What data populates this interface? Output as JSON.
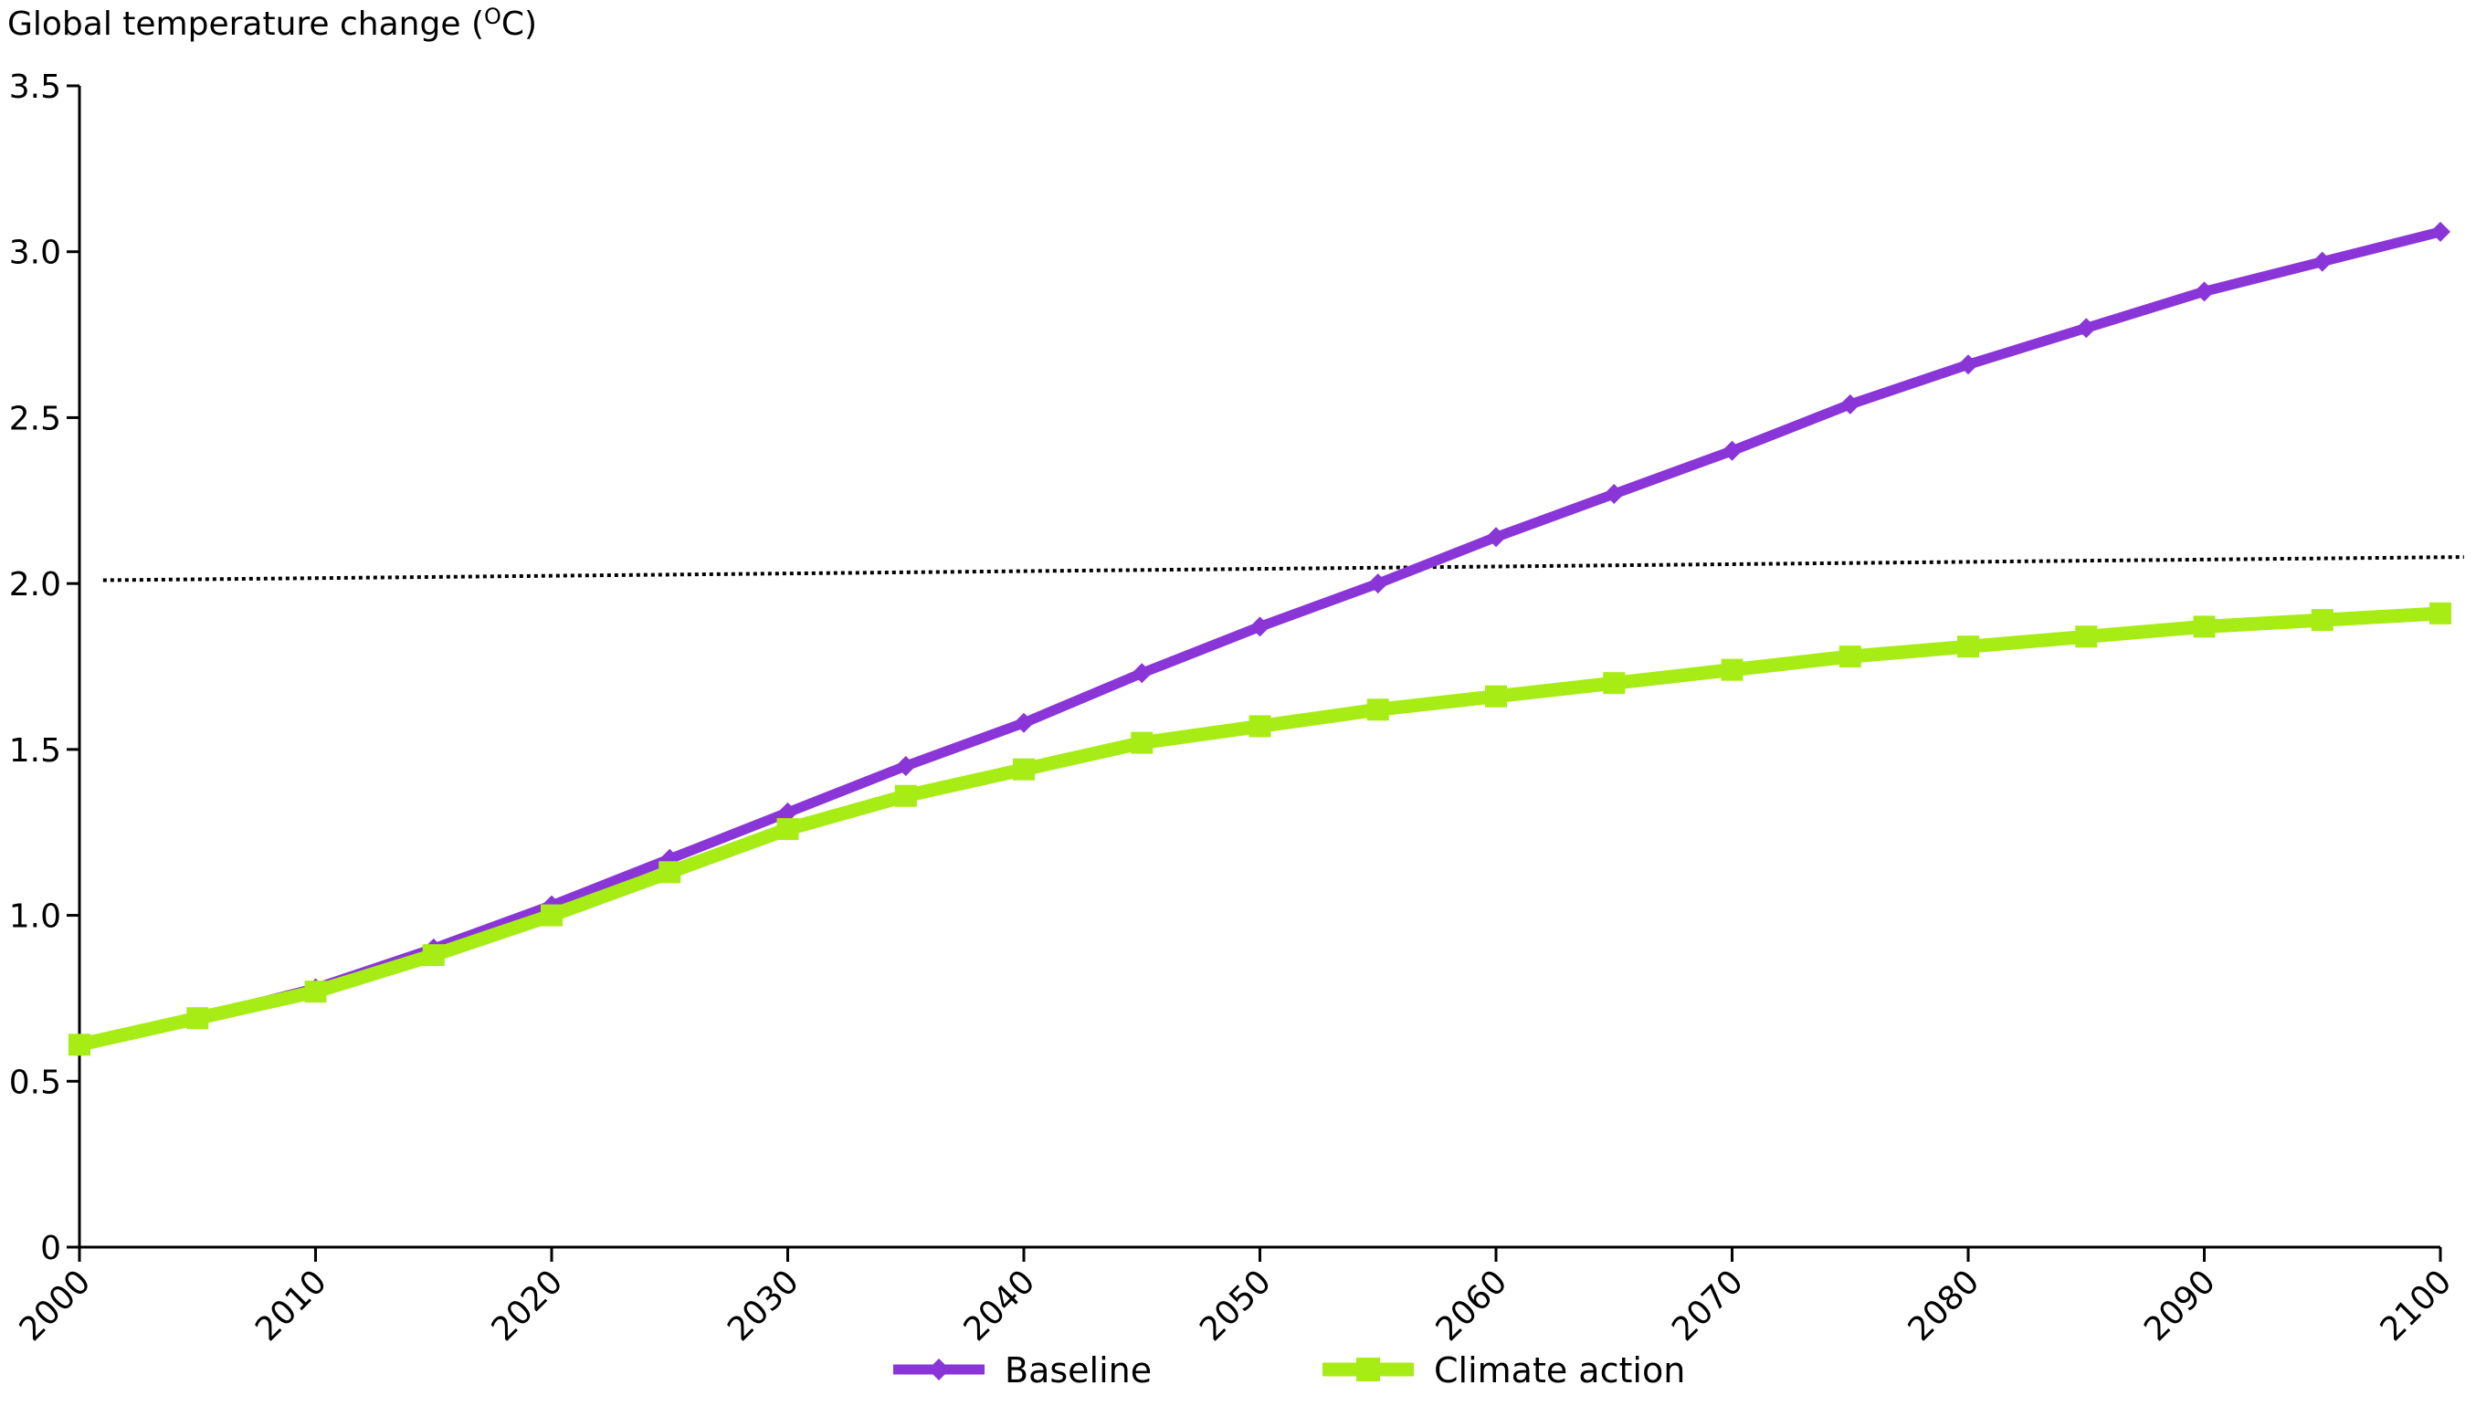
{
  "chart_data": {
    "type": "line",
    "title": "",
    "ylabel": "Global temperature change (",
    "ylabel_superscript": "O",
    "ylabel_suffix": "C)",
    "xlabel": "",
    "ylim": [
      0,
      3.5
    ],
    "xlim": [
      2000,
      2100
    ],
    "y_ticks": [
      "0",
      "0.5",
      "1.0",
      "1.5",
      "2.0",
      "2.5",
      "3.0",
      "3.5"
    ],
    "x_ticks": [
      "2000",
      "2010",
      "2020",
      "2030",
      "2040",
      "2050",
      "2060",
      "2070",
      "2080",
      "2090",
      "2100"
    ],
    "grid": false,
    "legend_position": "bottom",
    "x": [
      2000,
      2005,
      2010,
      2015,
      2020,
      2025,
      2030,
      2035,
      2040,
      2045,
      2050,
      2055,
      2060,
      2065,
      2070,
      2075,
      2080,
      2085,
      2090,
      2095,
      2100
    ],
    "series": [
      {
        "name": "Baseline",
        "color": "#8a35d8",
        "marker": "diamond",
        "values": [
          0.61,
          0.69,
          0.78,
          0.9,
          1.03,
          1.17,
          1.31,
          1.45,
          1.58,
          1.73,
          1.87,
          2.0,
          2.14,
          2.27,
          2.4,
          2.54,
          2.66,
          2.77,
          2.88,
          2.97,
          3.06
        ]
      },
      {
        "name": "Climate action",
        "color": "#a7ec14",
        "marker": "square",
        "values": [
          0.61,
          0.69,
          0.77,
          0.88,
          1.0,
          1.13,
          1.26,
          1.36,
          1.44,
          1.52,
          1.57,
          1.62,
          1.66,
          1.7,
          1.74,
          1.78,
          1.81,
          1.84,
          1.87,
          1.89,
          1.91
        ]
      }
    ],
    "reference_line": {
      "style": "dotted",
      "color": "#000000",
      "x": [
        2001,
        2101
      ],
      "values": [
        2.01,
        2.08
      ]
    }
  }
}
